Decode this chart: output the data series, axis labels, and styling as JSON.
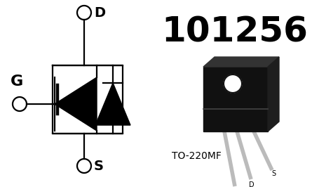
{
  "bg_color": "#ffffff",
  "title_number": "101256",
  "package_label": "TO-220MF",
  "schematic_color": "#000000",
  "fig_width": 4.45,
  "fig_height": 2.66,
  "dpi": 100,
  "lw": 1.6,
  "body_color": "#111111",
  "tab_color": "#222222",
  "lead_color": "#bbbbbb",
  "G_label": "G",
  "D_label": "D",
  "S_label": "S"
}
